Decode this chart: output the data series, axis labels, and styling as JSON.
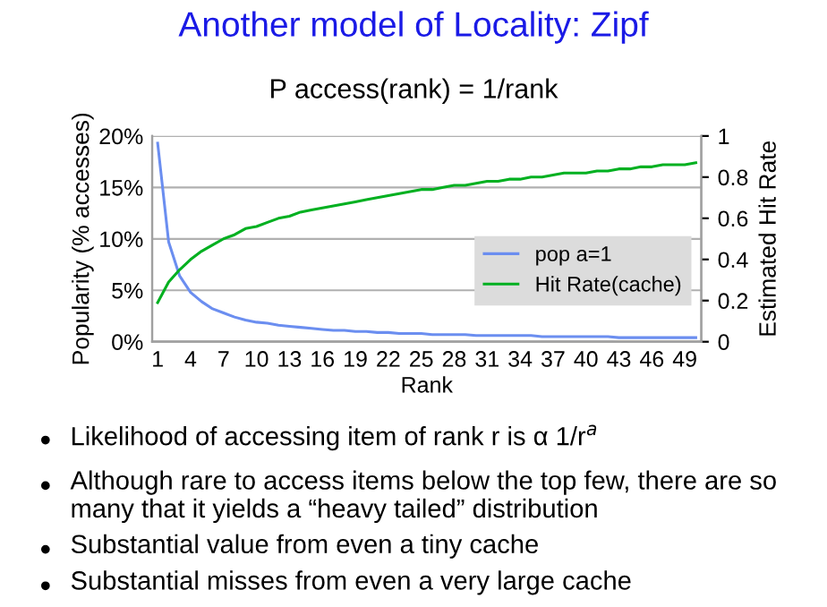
{
  "chart_data": {
    "type": "line",
    "title": "Another model of Locality: Zipf",
    "subtitle": "P access(rank) = 1/rank",
    "xlabel": "Rank",
    "ylabel": "Popularity (% accesses)",
    "y2label": "Estimated Hit Rate",
    "categories": [
      "1",
      null,
      null,
      "4",
      null,
      null,
      "7",
      null,
      null,
      "10",
      null,
      null,
      "13",
      null,
      null,
      "16",
      null,
      null,
      "19",
      null,
      null,
      "22",
      null,
      null,
      "25",
      null,
      null,
      "28",
      null,
      null,
      "31",
      null,
      null,
      "34",
      null,
      null,
      "37",
      null,
      null,
      "40",
      null,
      null,
      "43",
      null,
      null,
      "46",
      null,
      null,
      "49",
      null
    ],
    "series": [
      {
        "name": "pop a=1",
        "color": "#6b8ef0",
        "values": [
          19.3,
          9.7,
          6.4,
          4.8,
          3.9,
          3.2,
          2.8,
          2.4,
          2.1,
          1.9,
          1.8,
          1.6,
          1.5,
          1.4,
          1.3,
          1.2,
          1.1,
          1.1,
          1.0,
          1.0,
          0.9,
          0.9,
          0.8,
          0.8,
          0.8,
          0.7,
          0.7,
          0.7,
          0.7,
          0.6,
          0.6,
          0.6,
          0.6,
          0.6,
          0.6,
          0.5,
          0.5,
          0.5,
          0.5,
          0.5,
          0.5,
          0.5,
          0.4,
          0.4,
          0.4,
          0.4,
          0.4,
          0.4,
          0.4,
          0.4
        ]
      },
      {
        "name": "Hit Rate(cache)",
        "color": "#00b020",
        "axis": "y2",
        "values": [
          0.19,
          0.29,
          0.35,
          0.4,
          0.44,
          0.47,
          0.5,
          0.52,
          0.55,
          0.56,
          0.58,
          0.6,
          0.61,
          0.63,
          0.64,
          0.65,
          0.66,
          0.67,
          0.68,
          0.69,
          0.7,
          0.71,
          0.72,
          0.73,
          0.74,
          0.74,
          0.75,
          0.76,
          0.76,
          0.77,
          0.78,
          0.78,
          0.79,
          0.79,
          0.8,
          0.8,
          0.81,
          0.82,
          0.82,
          0.82,
          0.83,
          0.83,
          0.84,
          0.84,
          0.85,
          0.85,
          0.86,
          0.86,
          0.86,
          0.87
        ]
      }
    ],
    "ylim": [
      0,
      20
    ],
    "yticks": [
      {
        "value": 0,
        "label": "0%"
      },
      {
        "value": 5,
        "label": "5%"
      },
      {
        "value": 10,
        "label": "10%"
      },
      {
        "value": 15,
        "label": "15%"
      },
      {
        "value": 20,
        "label": "20%"
      }
    ],
    "y2lim": [
      0,
      1
    ],
    "y2ticks": [
      0,
      0.2,
      0.4,
      0.6,
      0.8,
      1
    ],
    "grid": "y",
    "legend": "right",
    "marker": "none",
    "line_style": "solid",
    "annotations": [
      "Likelihood of accessing item of rank r is α 1/r$^{a}$",
      "Although rare to access items below the top few, there are so many that it yields a “heavy tailed” distribution",
      "Substantial value from even a tiny cache",
      "Substantial misses from even a very large cache"
    ]
  }
}
